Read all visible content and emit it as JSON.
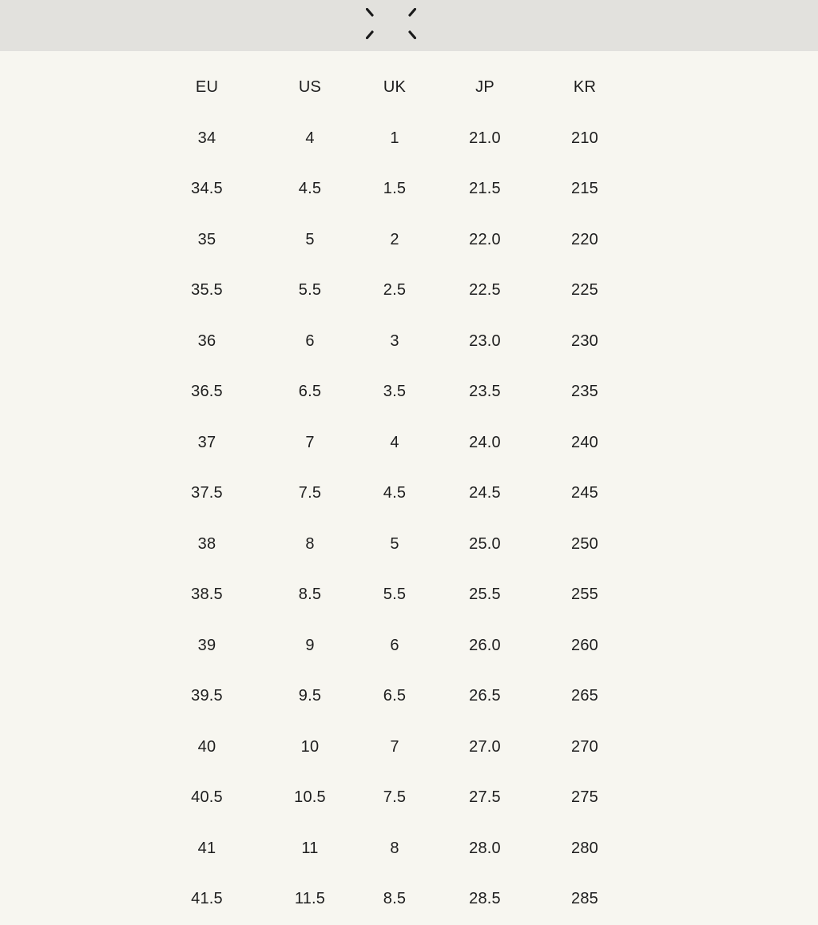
{
  "page": {
    "background_color": "#f7f6f0",
    "text_color": "#1e1e1e"
  },
  "top_bar": {
    "background_color": "#e2e1dd",
    "logo_icon": "four-stitches-icon",
    "logo_color": "#1a1a1a"
  },
  "size_chart": {
    "columns": [
      "EU",
      "US",
      "UK",
      "JP",
      "KR"
    ],
    "rows": [
      [
        "34",
        "4",
        "1",
        "21.0",
        "210"
      ],
      [
        "34.5",
        "4.5",
        "1.5",
        "21.5",
        "215"
      ],
      [
        "35",
        "5",
        "2",
        "22.0",
        "220"
      ],
      [
        "35.5",
        "5.5",
        "2.5",
        "22.5",
        "225"
      ],
      [
        "36",
        "6",
        "3",
        "23.0",
        "230"
      ],
      [
        "36.5",
        "6.5",
        "3.5",
        "23.5",
        "235"
      ],
      [
        "37",
        "7",
        "4",
        "24.0",
        "240"
      ],
      [
        "37.5",
        "7.5",
        "4.5",
        "24.5",
        "245"
      ],
      [
        "38",
        "8",
        "5",
        "25.0",
        "250"
      ],
      [
        "38.5",
        "8.5",
        "5.5",
        "25.5",
        "255"
      ],
      [
        "39",
        "9",
        "6",
        "26.0",
        "260"
      ],
      [
        "39.5",
        "9.5",
        "6.5",
        "26.5",
        "265"
      ],
      [
        "40",
        "10",
        "7",
        "27.0",
        "270"
      ],
      [
        "40.5",
        "10.5",
        "7.5",
        "27.5",
        "275"
      ],
      [
        "41",
        "11",
        "8",
        "28.0",
        "280"
      ],
      [
        "41.5",
        "11.5",
        "8.5",
        "28.5",
        "285"
      ]
    ]
  }
}
